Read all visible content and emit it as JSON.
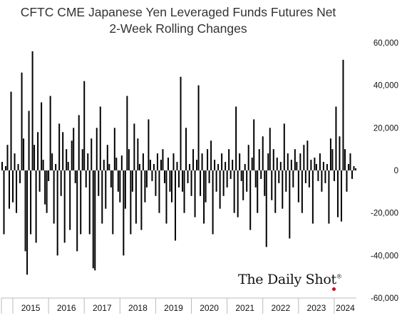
{
  "chart_data": {
    "type": "bar",
    "title_lines": [
      "CFTC CME Japanese Yen Leveraged Funds Futures Net",
      "2-Week Rolling Changes"
    ],
    "ylim": [
      -60000,
      60000
    ],
    "y_ticks": [
      "60,000",
      "40,000",
      "20,000",
      "0",
      "-20,000",
      "-40,000",
      "-60,000"
    ],
    "y_tick_values": [
      60000,
      40000,
      20000,
      0,
      -20000,
      -40000,
      -60000
    ],
    "x_tick_labels": [
      "2015",
      "2016",
      "2017",
      "2018",
      "2019",
      "2020",
      "2021",
      "2022",
      "2023",
      "2024"
    ],
    "x_range": [
      2014.68,
      2024.62
    ],
    "bar_color": "#000000",
    "series": [
      {
        "x": [
          2014.7,
          2014.75,
          2014.8,
          2014.85,
          2014.9,
          2014.95,
          2015.0,
          2015.05,
          2015.1,
          2015.15,
          2015.2,
          2015.25,
          2015.3,
          2015.35,
          2015.4,
          2015.45,
          2015.5,
          2015.55,
          2015.6,
          2015.65,
          2015.7,
          2015.75,
          2015.8,
          2015.85,
          2015.9,
          2015.95,
          2016.0,
          2016.05,
          2016.1,
          2016.15,
          2016.2,
          2016.25,
          2016.3,
          2016.35,
          2016.4,
          2016.45,
          2016.5,
          2016.55,
          2016.6,
          2016.65,
          2016.7,
          2016.75,
          2016.8,
          2016.85,
          2016.9,
          2016.95,
          2017.0,
          2017.05,
          2017.1,
          2017.15,
          2017.2,
          2017.25,
          2017.3,
          2017.35,
          2017.4,
          2017.45,
          2017.5,
          2017.55,
          2017.6,
          2017.65,
          2017.7,
          2017.75,
          2017.8,
          2017.85,
          2017.9,
          2017.95,
          2018.0,
          2018.05,
          2018.1,
          2018.15,
          2018.2,
          2018.25,
          2018.3,
          2018.35,
          2018.4,
          2018.45,
          2018.5,
          2018.55,
          2018.6,
          2018.65,
          2018.7,
          2018.75,
          2018.8,
          2018.85,
          2018.9,
          2018.95,
          2019.0,
          2019.05,
          2019.1,
          2019.15,
          2019.2,
          2019.25,
          2019.3,
          2019.35,
          2019.4,
          2019.45,
          2019.5,
          2019.55,
          2019.6,
          2019.65,
          2019.7,
          2019.75,
          2019.8,
          2019.85,
          2019.9,
          2019.95,
          2020.0,
          2020.05,
          2020.1,
          2020.15,
          2020.2,
          2020.25,
          2020.3,
          2020.35,
          2020.4,
          2020.45,
          2020.5,
          2020.55,
          2020.6,
          2020.65,
          2020.7,
          2020.75,
          2020.8,
          2020.85,
          2020.9,
          2020.95,
          2021.0,
          2021.05,
          2021.1,
          2021.15,
          2021.2,
          2021.25,
          2021.3,
          2021.35,
          2021.4,
          2021.45,
          2021.5,
          2021.55,
          2021.6,
          2021.65,
          2021.7,
          2021.75,
          2021.8,
          2021.85,
          2021.9,
          2021.95,
          2022.0,
          2022.05,
          2022.1,
          2022.15,
          2022.2,
          2022.25,
          2022.3,
          2022.35,
          2022.4,
          2022.45,
          2022.5,
          2022.55,
          2022.6,
          2022.65,
          2022.7,
          2022.75,
          2022.8,
          2022.85,
          2022.9,
          2022.95,
          2023.0,
          2023.05,
          2023.1,
          2023.15,
          2023.2,
          2023.25,
          2023.3,
          2023.35,
          2023.4,
          2023.45,
          2023.5,
          2023.55,
          2023.6,
          2023.65,
          2023.7,
          2023.75,
          2023.8,
          2023.85,
          2023.9,
          2023.95,
          2024.0,
          2024.05,
          2024.1,
          2024.15,
          2024.2,
          2024.25,
          2024.3,
          2024.35,
          2024.4,
          2024.45,
          2024.5,
          2024.55,
          2024.6
        ],
        "y": [
          4000,
          -30000,
          2000,
          12000,
          -18000,
          37000,
          -15000,
          8000,
          -20000,
          3000,
          -6000,
          46000,
          15000,
          -38000,
          -49000,
          28000,
          -30000,
          56000,
          12000,
          -34000,
          18000,
          -10000,
          32000,
          5000,
          -16000,
          -20000,
          -5000,
          35000,
          8000,
          -25000,
          3000,
          -40000,
          22000,
          -12000,
          18000,
          -34000,
          10000,
          4000,
          -28000,
          14000,
          20000,
          -6000,
          -38000,
          26000,
          -30000,
          10000,
          42000,
          -8000,
          8000,
          -30000,
          15000,
          -46000,
          -47000,
          20000,
          -12000,
          30000,
          -25000,
          5000,
          -18000,
          12000,
          3000,
          -8000,
          -30000,
          20000,
          6000,
          -10000,
          -15000,
          7000,
          -40000,
          -18000,
          35000,
          10000,
          -30000,
          -10000,
          22000,
          -25000,
          15000,
          3000,
          -28000,
          8000,
          -15000,
          -8000,
          24000,
          5000,
          -5000,
          3000,
          -12000,
          8000,
          -20000,
          5000,
          10000,
          -6000,
          -25000,
          6000,
          -10000,
          -15000,
          8000,
          -33000,
          4000,
          -8000,
          44000,
          -10000,
          -20000,
          20000,
          -6000,
          3000,
          -12000,
          10000,
          -22000,
          5000,
          40000,
          -12000,
          8000,
          -25000,
          -15000,
          10000,
          -6000,
          14000,
          -30000,
          5000,
          -10000,
          3000,
          -18000,
          8000,
          -12000,
          4000,
          -8000,
          10000,
          -4000,
          5000,
          -20000,
          30000,
          -22000,
          8000,
          -5000,
          -14000,
          3000,
          -10000,
          12000,
          -28000,
          6000,
          24000,
          -8000,
          -20000,
          10000,
          -4000,
          16000,
          -12000,
          -36000,
          8000,
          20000,
          -14000,
          10000,
          -20000,
          6000,
          -6000,
          4000,
          -18000,
          22000,
          -10000,
          8000,
          -32000,
          5000,
          -8000,
          10000,
          4000,
          -15000,
          8000,
          -20000,
          12000,
          -6000,
          14000,
          -8000,
          5000,
          -25000,
          6000,
          3000,
          -5000,
          8000,
          -10000,
          4000,
          -6000,
          3000,
          -25000,
          15000,
          10000,
          -5000,
          30000,
          -22000,
          16000,
          -24000,
          52000,
          10000,
          -10000,
          3000,
          8000,
          -4000,
          2000,
          1000
        ]
      }
    ]
  },
  "brand": {
    "name": "The Daily Shot",
    "mark": "®"
  }
}
